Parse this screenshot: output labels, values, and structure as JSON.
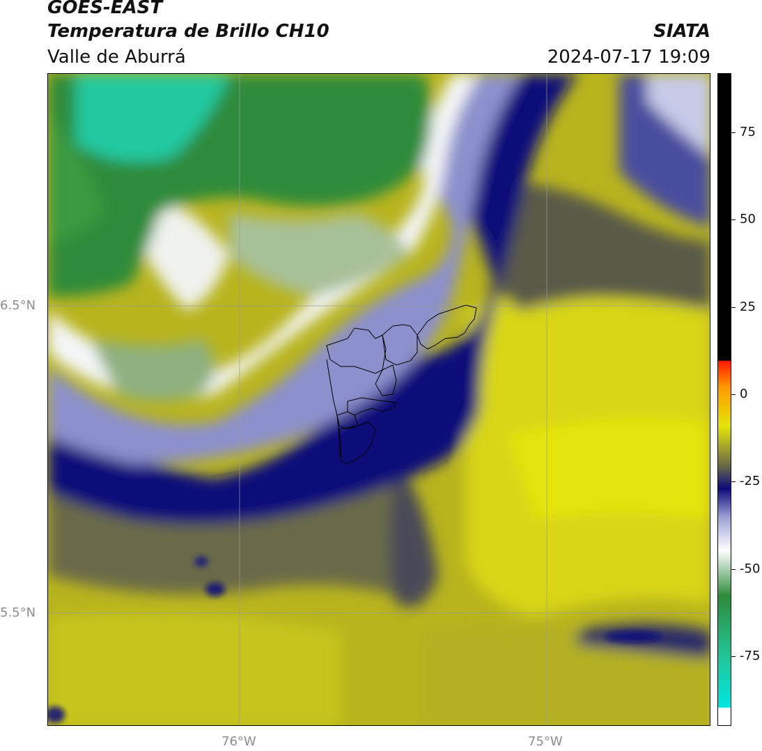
{
  "header": {
    "title_line1": "GOES-EAST",
    "title_line2": "Temperatura de Brillo CH10",
    "region": "Valle de Aburrá",
    "organization": "SIATA",
    "datetime": "2024-07-17 19:09"
  },
  "map": {
    "lat_labels": [
      "6.5°N",
      "5.5°N"
    ],
    "lon_labels": [
      "76°W",
      "75°W"
    ]
  },
  "colorbar": {
    "ticks": [
      "75",
      "50",
      "25",
      "0",
      "-25",
      "-50",
      "-75"
    ],
    "range": [
      -95,
      92
    ],
    "colors": {
      "cyan": "#00e5e0",
      "teal": "#20c9a0",
      "green": "#2e8b3a",
      "white": "#ffffff",
      "lavender": "#9ea3d6",
      "navy": "#0b0b7a",
      "olive": "#5a5a4a",
      "yellow": "#e4e40a",
      "orange": "#ff9900",
      "red": "#ff1800",
      "black": "#000000"
    }
  }
}
